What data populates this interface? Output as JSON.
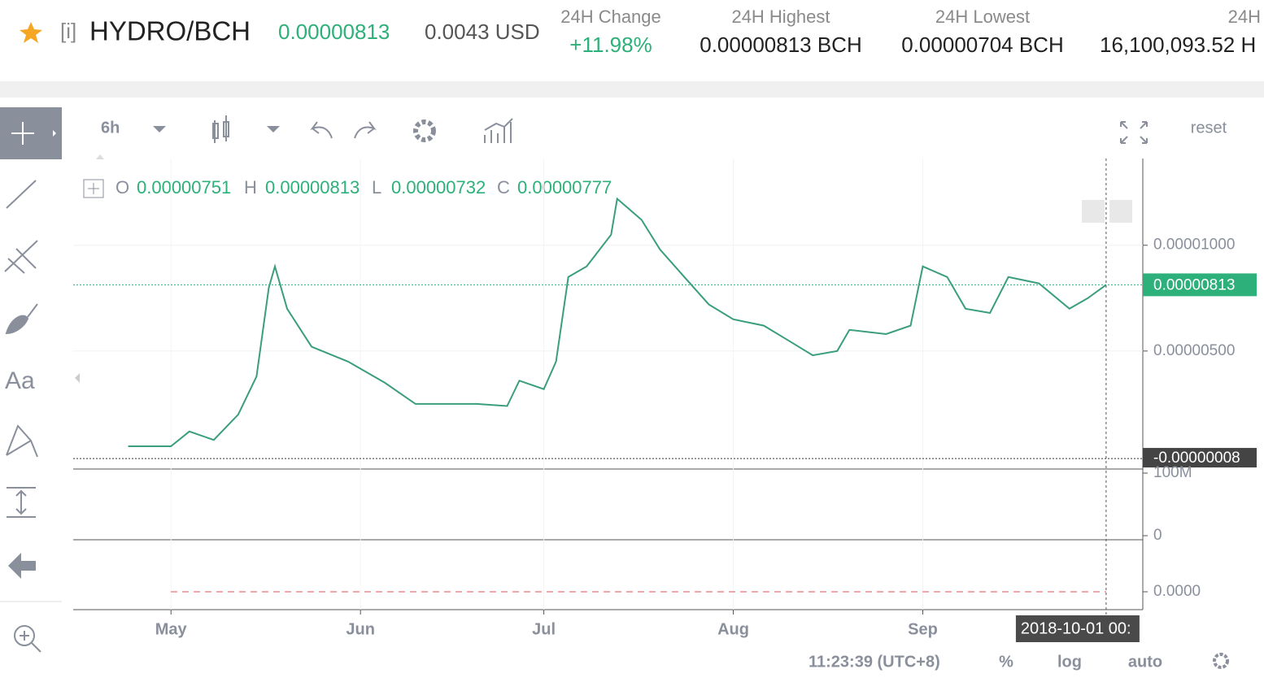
{
  "header": {
    "pair_info": "[i]",
    "pair": "HYDRO/BCH",
    "price": "0.00000813",
    "price_usd": "0.0043 USD",
    "stats": [
      {
        "label": "24H Change",
        "value": "+11.98%"
      },
      {
        "label": "24H Highest",
        "value": "0.00000813 BCH"
      },
      {
        "label": "24H Lowest",
        "value": "0.00000704 BCH"
      },
      {
        "label": "24H",
        "value": "16,100,093.52 H"
      }
    ]
  },
  "toolbar": {
    "interval": "6h",
    "reset": "reset",
    "font_tool": "Aa"
  },
  "ohlc": [
    {
      "label": "O",
      "value": "0.00000751"
    },
    {
      "label": "H",
      "value": "0.00000813"
    },
    {
      "label": "L",
      "value": "0.00000732"
    },
    {
      "label": "C",
      "value": "0.00000777"
    }
  ],
  "chart_data": {
    "type": "line",
    "color": "#3a9e7e",
    "x": [
      "2018-04-24",
      "2018-05-01",
      "2018-05-04",
      "2018-05-08",
      "2018-05-12",
      "2018-05-15",
      "2018-05-17",
      "2018-05-18",
      "2018-05-20",
      "2018-05-24",
      "2018-05-30",
      "2018-06-05",
      "2018-06-10",
      "2018-06-20",
      "2018-06-25",
      "2018-06-27",
      "2018-07-01",
      "2018-07-03",
      "2018-07-05",
      "2018-07-08",
      "2018-07-12",
      "2018-07-13",
      "2018-07-17",
      "2018-07-20",
      "2018-07-24",
      "2018-07-28",
      "2018-08-01",
      "2018-08-06",
      "2018-08-10",
      "2018-08-14",
      "2018-08-18",
      "2018-08-20",
      "2018-08-26",
      "2018-08-30",
      "2018-09-01",
      "2018-09-05",
      "2018-09-08",
      "2018-09-12",
      "2018-09-15",
      "2018-09-20",
      "2018-09-25",
      "2018-09-28",
      "2018-10-01"
    ],
    "series": [
      {
        "values": [
          5e-07,
          5e-07,
          1.2e-06,
          8e-07,
          2e-06,
          3.8e-06,
          8e-06,
          9e-06,
          7e-06,
          5.2e-06,
          4.5e-06,
          3.5e-06,
          2.5e-06,
          2.5e-06,
          2.4e-06,
          3.6e-06,
          3.2e-06,
          4.5e-06,
          8.5e-06,
          9e-06,
          1.05e-05,
          1.22e-05,
          1.12e-05,
          9.8e-06,
          8.5e-06,
          7.2e-06,
          6.5e-06,
          6.2e-06,
          5.5e-06,
          4.8e-06,
          5e-06,
          6e-06,
          5.8e-06,
          6.2e-06,
          9e-06,
          8.5e-06,
          7e-06,
          6.8e-06,
          8.5e-06,
          8.2e-06,
          7e-06,
          7.5e-06,
          8.13e-06
        ]
      }
    ],
    "xlim": [
      "2018-04-15",
      "2018-10-07"
    ],
    "xticks": [
      {
        "value": "2018-05-01",
        "label": "May"
      },
      {
        "value": "2018-06-01",
        "label": "Jun"
      },
      {
        "value": "2018-07-01",
        "label": "Jul"
      },
      {
        "value": "2018-08-01",
        "label": "Aug"
      },
      {
        "value": "2018-09-01",
        "label": "Sep"
      }
    ],
    "ylim": [
      -5e-07,
      1.41e-05
    ],
    "yticks": [
      {
        "value": 1e-05,
        "label": "0.00001000"
      },
      {
        "value": 5e-06,
        "label": "0.00000500"
      }
    ],
    "current_price": {
      "value": 8.13e-06,
      "label": "0.00000813"
    },
    "low_marker": {
      "value": -8e-08,
      "label": "-0.00000008"
    },
    "grid": true,
    "volume_ticks": [
      {
        "value": 100000000,
        "label": "100M"
      },
      0
    ],
    "macd_ticks": [
      {
        "value": 0,
        "label": "0.0000"
      }
    ],
    "crosshair_time": "2018-10-01 00:"
  },
  "footer": {
    "time": "11:23:39 (UTC+8)",
    "percent": "%",
    "log": "log",
    "auto": "auto"
  }
}
